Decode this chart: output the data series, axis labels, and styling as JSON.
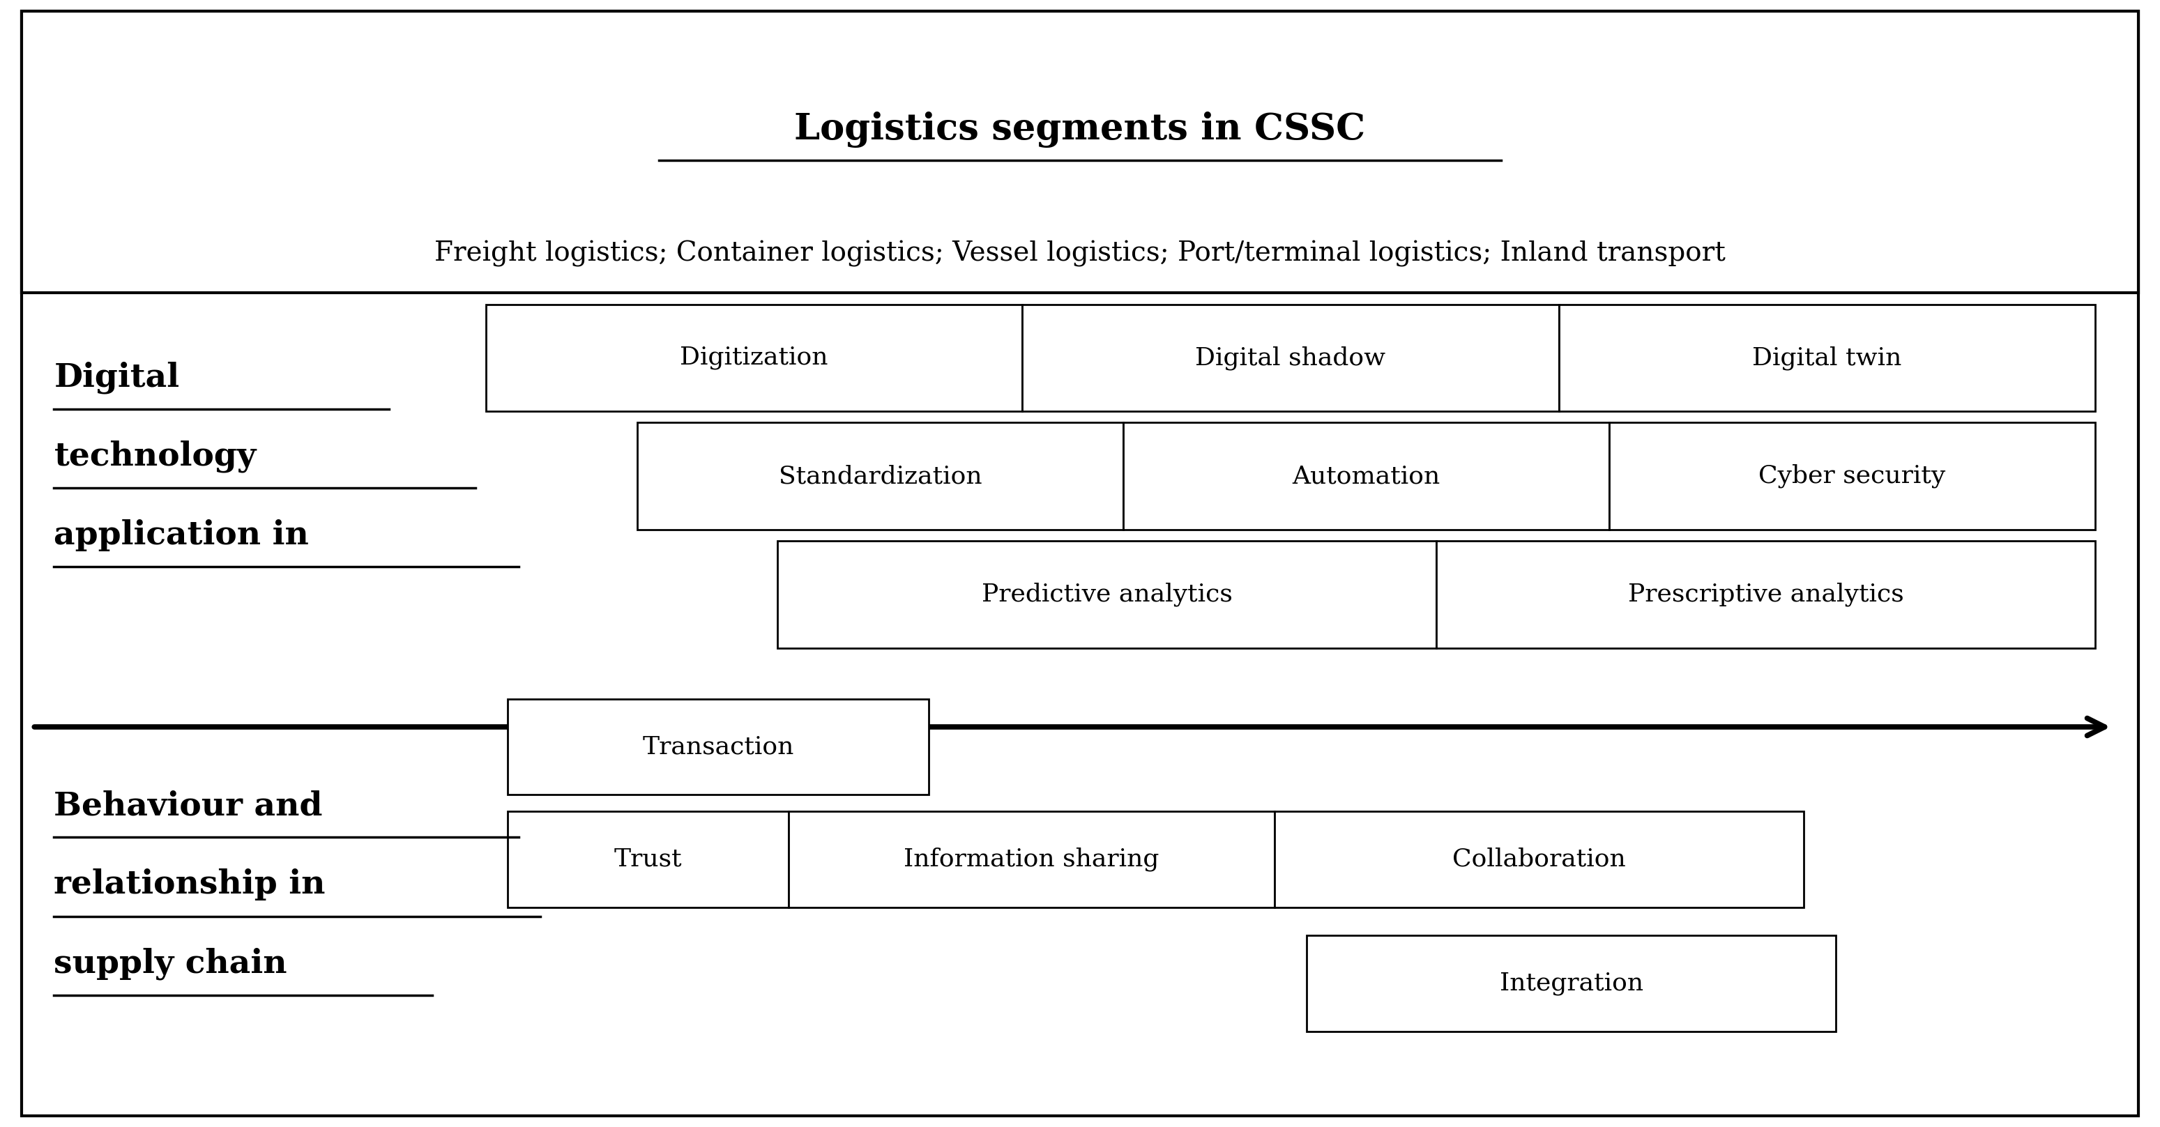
{
  "fig_width": 30.98,
  "fig_height": 16.17,
  "bg_color": "#ffffff",
  "border_color": "#000000",
  "title_bold": "Logistics segments in CSSC",
  "subtitle": "Freight logistics; Container logistics; Vessel logistics; Port/terminal logistics; Inland transport",
  "section1_label_lines": [
    "Digital",
    "technology",
    "application in"
  ],
  "section2_label_lines": [
    "Behaviour and",
    "relationship in",
    "supply chain"
  ],
  "row1_boxes": [
    "Digitization",
    "Digital shadow",
    "Digital twin"
  ],
  "row2_boxes": [
    "Standardization",
    "Automation",
    "Cyber security"
  ],
  "row3_boxes": [
    "Predictive analytics",
    "Prescriptive analytics"
  ],
  "row4_boxes": [
    "Transaction"
  ],
  "row5_boxes": [
    "Trust",
    "Information sharing",
    "Collaboration"
  ],
  "row6_boxes": [
    "Integration"
  ],
  "font_size_title": 38,
  "font_size_subtitle": 28,
  "font_size_label": 34,
  "font_size_box": 26
}
